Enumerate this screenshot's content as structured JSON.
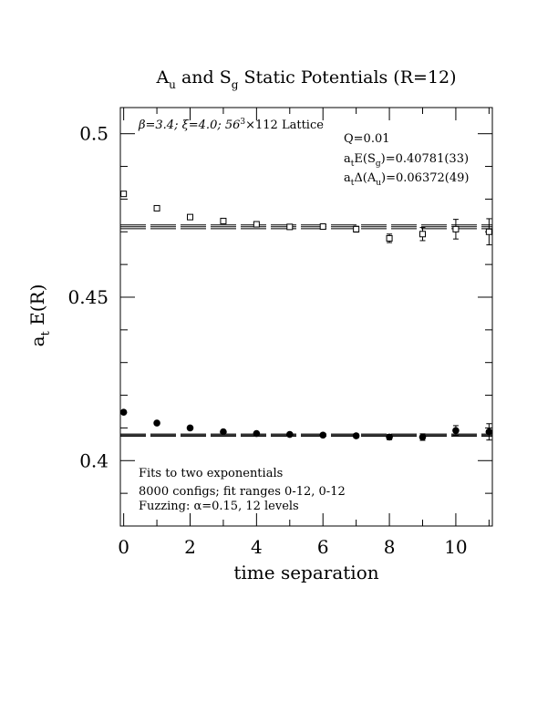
{
  "chart_data": {
    "type": "scatter",
    "title": {
      "main_a": "A",
      "sub_a": "u",
      "mid": " and S",
      "sub_b": "g",
      "tail": " Static Potentials (R=12)"
    },
    "xlabel": "time separation",
    "ylabel": {
      "pre": "a",
      "sub": "t",
      "post": " E(R)"
    },
    "xlim": [
      -0.1,
      11.1
    ],
    "ylim": [
      0.38,
      0.508
    ],
    "x_ticks": [
      0,
      2,
      4,
      6,
      8,
      10
    ],
    "x_tick_labels": [
      "0",
      "2",
      "4",
      "6",
      "8",
      "10"
    ],
    "y_ticks": [
      0.4,
      0.45,
      0.5
    ],
    "y_tick_labels": [
      "0.4",
      "0.45",
      "0.5"
    ],
    "y_minor_step": 0.01,
    "grid": false,
    "annotations": {
      "lattice": {
        "beta": "β=3.4; ",
        "xi": "ξ=4.0; 56",
        "sup": "3",
        "tail": "×112 Lattice"
      },
      "q": "Q=0.01",
      "fit_sg": {
        "pre": "a",
        "sub1": "t",
        "mid": "E(S",
        "sub2": "g",
        "tail": ")=0.40781(33)"
      },
      "fit_au": {
        "pre": "a",
        "sub1": "t",
        "mid": "Δ(A",
        "sub2": "u",
        "tail": ")=0.06372(49)"
      },
      "notes": [
        "Fits to two exponentials",
        "8000 configs; fit ranges 0-12, 0-12",
        "Fuzzing: α=0.15, 12 levels"
      ]
    },
    "series": [
      {
        "marker": "open-square",
        "points": [
          {
            "x": 0,
            "y": 0.4816,
            "err": 0.0004
          },
          {
            "x": 1,
            "y": 0.4772,
            "err": 0.0004
          },
          {
            "x": 2,
            "y": 0.4745,
            "err": 0.0005
          },
          {
            "x": 3,
            "y": 0.4733,
            "err": 0.0005
          },
          {
            "x": 4,
            "y": 0.4723,
            "err": 0.0005
          },
          {
            "x": 5,
            "y": 0.4715,
            "err": 0.0006
          },
          {
            "x": 6,
            "y": 0.4716,
            "err": 0.0007
          },
          {
            "x": 7,
            "y": 0.4708,
            "err": 0.0009
          },
          {
            "x": 8,
            "y": 0.468,
            "err": 0.0013
          },
          {
            "x": 9,
            "y": 0.4693,
            "err": 0.002
          },
          {
            "x": 10,
            "y": 0.4708,
            "err": 0.003
          },
          {
            "x": 11,
            "y": 0.47,
            "err": 0.004
          }
        ],
        "fit": {
          "y": 0.47153,
          "err": 0.00058
        }
      },
      {
        "marker": "filled-circle",
        "points": [
          {
            "x": 0,
            "y": 0.4148,
            "err": 0.0003
          },
          {
            "x": 1,
            "y": 0.4115,
            "err": 0.0003
          },
          {
            "x": 2,
            "y": 0.41,
            "err": 0.0003
          },
          {
            "x": 3,
            "y": 0.4088,
            "err": 0.0004
          },
          {
            "x": 4,
            "y": 0.4083,
            "err": 0.0004
          },
          {
            "x": 5,
            "y": 0.408,
            "err": 0.0005
          },
          {
            "x": 6,
            "y": 0.4078,
            "err": 0.0005
          },
          {
            "x": 7,
            "y": 0.4076,
            "err": 0.0006
          },
          {
            "x": 8,
            "y": 0.4072,
            "err": 0.0008
          },
          {
            "x": 9,
            "y": 0.4072,
            "err": 0.001
          },
          {
            "x": 10,
            "y": 0.4092,
            "err": 0.0015
          },
          {
            "x": 11,
            "y": 0.4088,
            "err": 0.0025
          }
        ],
        "fit": {
          "y": 0.40781,
          "err": 0.00033
        }
      }
    ]
  }
}
